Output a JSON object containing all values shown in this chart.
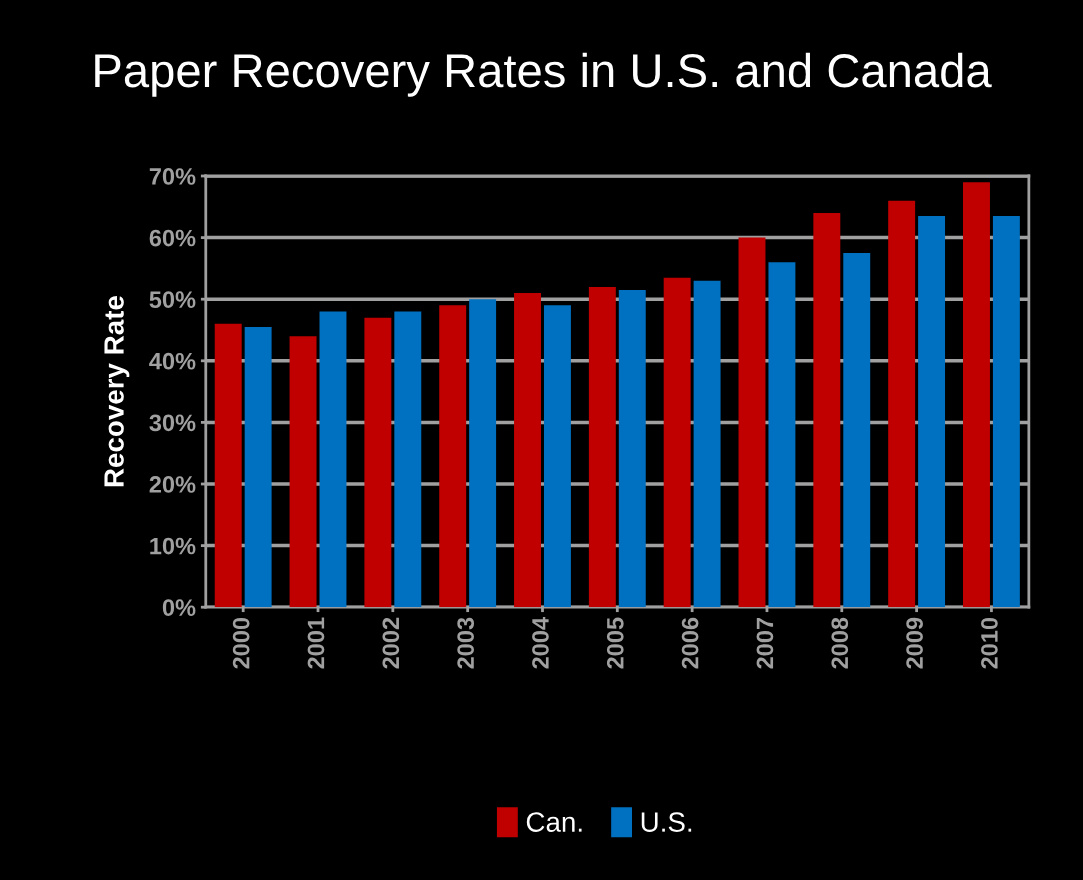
{
  "chart_data": {
    "type": "bar",
    "title": "Paper Recovery Rates in U.S. and Canada",
    "ylabel": "Recovery Rate",
    "categories": [
      "2000",
      "2001",
      "2002",
      "2003",
      "2004",
      "2005",
      "2006",
      "2007",
      "2008",
      "2009",
      "2010"
    ],
    "series": [
      {
        "name": "Can.",
        "color": "#c00000",
        "values": [
          46,
          44,
          47,
          49,
          51,
          52,
          53.5,
          60,
          64,
          66,
          69
        ]
      },
      {
        "name": "U.S.",
        "color": "#0070c0",
        "values": [
          45.5,
          48,
          48,
          50,
          49,
          51.5,
          53,
          56,
          57.5,
          63.5,
          63.5
        ]
      }
    ],
    "ylim": [
      0,
      70
    ],
    "yticks": [
      {
        "value": 0,
        "label": "0%"
      },
      {
        "value": 10,
        "label": "10%"
      },
      {
        "value": 20,
        "label": "20%"
      },
      {
        "value": 30,
        "label": "30%"
      },
      {
        "value": 40,
        "label": "40%"
      },
      {
        "value": 50,
        "label": "50%"
      },
      {
        "value": 60,
        "label": "60%"
      },
      {
        "value": 70,
        "label": "70%"
      }
    ],
    "grid": "y",
    "legend": "bottom"
  }
}
